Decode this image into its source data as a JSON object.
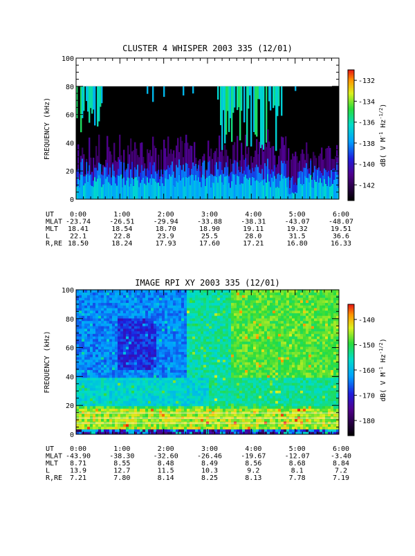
{
  "chart_data": [
    {
      "type": "heatmap",
      "title": "CLUSTER 4 WHISPER 2003 335 (12/01)",
      "ylabel": "FREQUENCY (kHz)",
      "xlim": [
        "0:00",
        "6:00"
      ],
      "ylim": [
        0,
        100
      ],
      "y_ticks": [
        "0",
        "20",
        "40",
        "60",
        "80",
        "100"
      ],
      "data_ceiling_khz": 80,
      "colorbar": {
        "label": "dB( V M<sup>-1</sup> Hz<sup>-1/2</sup>)",
        "label_text": "dB( V M",
        "label_sup1": "-1",
        "label_mid": " Hz",
        "label_sup2": "-1/2",
        "label_end": ")",
        "range": [
          -143.5,
          -131
        ],
        "ticks": [
          "-132",
          "-134",
          "-136",
          "-138",
          "-140",
          "-142"
        ],
        "tick_values": [
          -132,
          -134,
          -136,
          -138,
          -140,
          -142
        ]
      },
      "orbit_table": {
        "row_labels": [
          "UT",
          "MLAT",
          "MLT",
          "L",
          "R,RE"
        ],
        "columns": [
          [
            "0:00",
            "-23.74",
            "18.41",
            "22.1",
            "18.50"
          ],
          [
            "1:00",
            "-26.51",
            "18.54",
            "22.8",
            "18.24"
          ],
          [
            "2:00",
            "-29.94",
            "18.70",
            "23.9",
            "17.93"
          ],
          [
            "3:00",
            "-33.88",
            "18.90",
            "25.5",
            "17.60"
          ],
          [
            "4:00",
            "-38.31",
            "19.11",
            "28.0",
            "17.21"
          ],
          [
            "5:00",
            "-43.07",
            "19.32",
            "31.5",
            "16.80"
          ],
          [
            "6:00",
            "-48.07",
            "19.51",
            "36.6",
            "16.33"
          ]
        ]
      }
    },
    {
      "type": "heatmap",
      "title": "IMAGE RPI XY 2003 335 (12/01)",
      "ylabel": "FREQUENCY (kHz)",
      "xlim": [
        "0:00",
        "6:00"
      ],
      "ylim": [
        0,
        100
      ],
      "y_ticks": [
        "0",
        "20",
        "40",
        "60",
        "80",
        "100"
      ],
      "colorbar": {
        "label_text": "dB( V M",
        "label_sup1": "-1",
        "label_mid": " Hz",
        "label_sup2": "-1/2",
        "label_end": ")",
        "range": [
          -186,
          -134
        ],
        "ticks": [
          "-140",
          "-150",
          "-160",
          "-170",
          "-180"
        ],
        "tick_values": [
          -140,
          -150,
          -160,
          -170,
          -180
        ]
      },
      "orbit_table": {
        "row_labels": [
          "UT",
          "MLAT",
          "MLT",
          "L",
          "R,RE"
        ],
        "columns": [
          [
            "0:00",
            "-43.90",
            "8.71",
            "13.9",
            "7.21"
          ],
          [
            "1:00",
            "-38.30",
            "8.55",
            "12.7",
            "7.80"
          ],
          [
            "2:00",
            "-32.60",
            "8.48",
            "11.5",
            "8.14"
          ],
          [
            "3:00",
            "-26.46",
            "8.49",
            "10.3",
            "8.25"
          ],
          [
            "4:00",
            "-19.67",
            "8.56",
            "9.2",
            "8.13"
          ],
          [
            "5:00",
            "-12.07",
            "8.68",
            "8.1",
            "7.78"
          ],
          [
            "6:00",
            "-3.40",
            "8.84",
            "7.2",
            "7.19"
          ]
        ]
      }
    }
  ]
}
